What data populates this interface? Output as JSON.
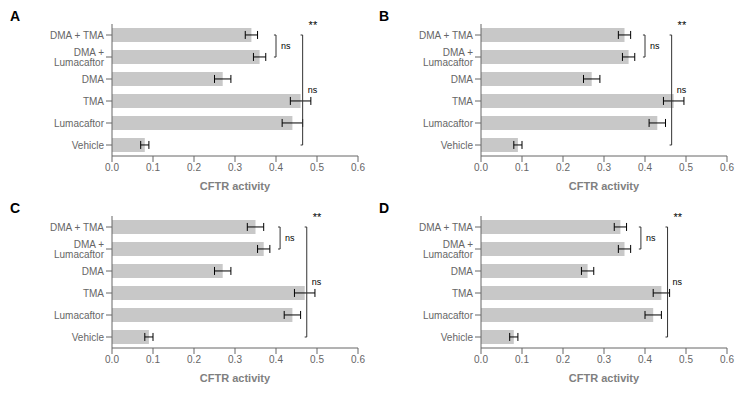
{
  "chart_data": [
    {
      "type": "bar",
      "title": "A",
      "orientation": "horizontal",
      "grid": false,
      "categories": [
        "DMA + TMA",
        "DMA + Lumacaftor",
        "DMA",
        "TMA",
        "Lumacaftor",
        "Vehicle"
      ],
      "values": [
        0.34,
        0.36,
        0.27,
        0.46,
        0.44,
        0.08
      ],
      "errors": [
        0.015,
        0.015,
        0.02,
        0.025,
        0.025,
        0.01
      ],
      "color": "#c8c8c8",
      "xlabel": "CFTR activity",
      "xlim": [
        0.0,
        0.6
      ],
      "xticks": [
        {
          "value": 0.0,
          "label": "0.0"
        },
        0.1,
        0.2,
        0.3,
        0.4,
        0.5,
        0.6
      ],
      "annotations": [
        {
          "text": "ns",
          "from": "DMA + TMA",
          "to": "DMA + Lumacaftor"
        },
        {
          "text": "ns",
          "from": "DMA + TMA",
          "to": "Vehicle"
        },
        {
          "text": "**",
          "at": "DMA + TMA"
        }
      ]
    },
    {
      "type": "bar",
      "title": "B",
      "orientation": "horizontal",
      "grid": false,
      "categories": [
        "DMA + TMA",
        "DMA + Lumacaftor",
        "DMA",
        "TMA",
        "Lumacaftor",
        "Vehicle"
      ],
      "values": [
        0.35,
        0.36,
        0.27,
        0.47,
        0.43,
        0.09
      ],
      "errors": [
        0.015,
        0.015,
        0.02,
        0.025,
        0.02,
        0.01
      ],
      "color": "#c8c8c8",
      "xlabel": "CFTR activity",
      "xlim": [
        0.0,
        0.6
      ],
      "xticks": [
        {
          "value": 0.0,
          "label": "0.0"
        },
        0.1,
        0.2,
        0.3,
        0.4,
        0.5,
        0.6
      ],
      "annotations": [
        {
          "text": "ns",
          "from": "DMA + TMA",
          "to": "DMA + Lumacaftor"
        },
        {
          "text": "ns",
          "from": "DMA + TMA",
          "to": "Vehicle"
        },
        {
          "text": "**",
          "at": "DMA + TMA"
        }
      ]
    },
    {
      "type": "bar",
      "title": "C",
      "orientation": "horizontal",
      "grid": false,
      "categories": [
        "DMA + TMA",
        "DMA + Lumacaftor",
        "DMA",
        "TMA",
        "Lumacaftor",
        "Vehicle"
      ],
      "values": [
        0.35,
        0.37,
        0.27,
        0.47,
        0.44,
        0.09
      ],
      "errors": [
        0.02,
        0.015,
        0.02,
        0.025,
        0.02,
        0.01
      ],
      "color": "#c8c8c8",
      "xlabel": "CFTR activity",
      "xlim": [
        0.0,
        0.6
      ],
      "xticks": [
        {
          "value": 0.0,
          "label": "0.0"
        },
        0.1,
        0.2,
        0.3,
        0.4,
        0.5,
        0.6
      ],
      "annotations": [
        {
          "text": "ns",
          "from": "DMA + TMA",
          "to": "DMA + Lumacaftor"
        },
        {
          "text": "ns",
          "from": "DMA + TMA",
          "to": "Vehicle"
        },
        {
          "text": "**",
          "at": "DMA + TMA"
        }
      ]
    },
    {
      "type": "bar",
      "title": "D",
      "orientation": "horizontal",
      "grid": false,
      "categories": [
        "DMA + TMA",
        "DMA + Lumacaftor",
        "DMA",
        "TMA",
        "Lumacaftor",
        "Vehicle"
      ],
      "values": [
        0.34,
        0.35,
        0.26,
        0.44,
        0.42,
        0.08
      ],
      "errors": [
        0.015,
        0.015,
        0.015,
        0.02,
        0.02,
        0.01
      ],
      "color": "#c8c8c8",
      "xlabel": "CFTR activity",
      "xlim": [
        0.0,
        0.6
      ],
      "xticks": [
        {
          "value": 0.0,
          "label": "0.0"
        },
        0.1,
        0.2,
        0.3,
        0.4,
        0.5,
        0.6
      ],
      "annotations": [
        {
          "text": "ns",
          "from": "DMA + TMA",
          "to": "DMA + Lumacaftor"
        },
        {
          "text": "ns",
          "from": "DMA + TMA",
          "to": "Vehicle"
        },
        {
          "text": "**",
          "at": "DMA + TMA"
        }
      ]
    }
  ]
}
